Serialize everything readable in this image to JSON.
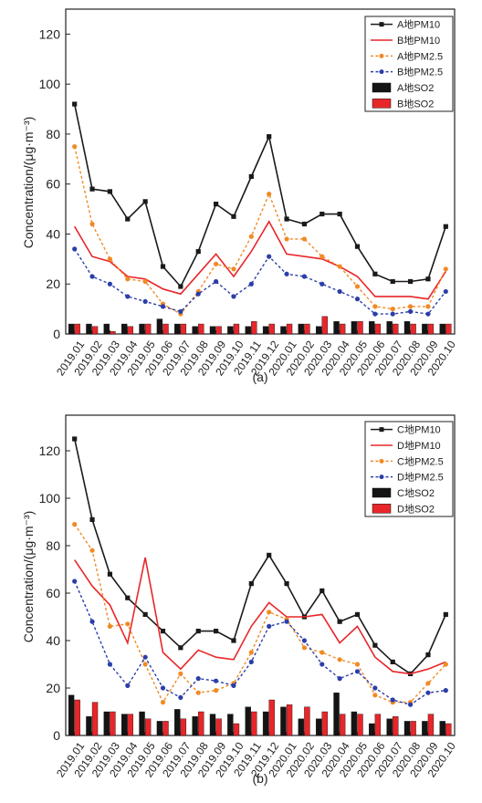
{
  "chart_data": [
    {
      "panel_label": "(a)",
      "type": "line",
      "ylabel": "Concentration/(μg·m⁻³)",
      "ylim": [
        0,
        130
      ],
      "yticks": [
        0,
        20,
        40,
        60,
        80,
        100,
        120
      ],
      "categories": [
        "2019.01",
        "2019.02",
        "2019.03",
        "2019.04",
        "2019.05",
        "2019.06",
        "2019.07",
        "2019.08",
        "2019.09",
        "2019.10",
        "2019.11",
        "2019.12",
        "2020.01",
        "2020.02",
        "2020.03",
        "2020.04",
        "2020.05",
        "2020.06",
        "2020.07",
        "2020.08",
        "2020.09",
        "2020.10"
      ],
      "legend_position": "top-right",
      "series": [
        {
          "name": "A地PM10",
          "kind": "line",
          "style": "solid",
          "marker": "square",
          "color": "#1a1a1a",
          "values": [
            92,
            58,
            57,
            46,
            53,
            27,
            19,
            33,
            52,
            47,
            63,
            79,
            46,
            44,
            48,
            48,
            35,
            24,
            21,
            21,
            22,
            43
          ]
        },
        {
          "name": "B地PM10",
          "kind": "line",
          "style": "solid",
          "marker": "none",
          "color": "#e8262a",
          "values": [
            43,
            31,
            29,
            23,
            22,
            18,
            16,
            24,
            32,
            23,
            33,
            45,
            32,
            31,
            30,
            27,
            23,
            15,
            15,
            15,
            14,
            25
          ]
        },
        {
          "name": "A地PM2.5",
          "kind": "line",
          "style": "dotted",
          "marker": "circle",
          "color": "#f08a24",
          "values": [
            75,
            44,
            30,
            22,
            21,
            12,
            8,
            17,
            28,
            26,
            39,
            56,
            38,
            38,
            31,
            27,
            19,
            11,
            10,
            11,
            11,
            26
          ]
        },
        {
          "name": "B地PM2.5",
          "kind": "line",
          "style": "dotted",
          "marker": "circle",
          "color": "#2b3ea8",
          "values": [
            34,
            23,
            20,
            15,
            13,
            11,
            9,
            16,
            21,
            15,
            20,
            31,
            24,
            23,
            20,
            17,
            14,
            8,
            8,
            9,
            8,
            17
          ]
        },
        {
          "name": "A地SO2",
          "kind": "bar",
          "color": "#141414",
          "values": [
            4,
            4,
            4,
            4,
            4,
            6,
            4,
            3,
            3,
            3,
            3,
            3,
            3,
            4,
            3,
            5,
            5,
            5,
            5,
            5,
            4,
            4
          ]
        },
        {
          "name": "B地SO2",
          "kind": "bar",
          "color": "#e8262a",
          "values": [
            4,
            3,
            1,
            3,
            4,
            4,
            4,
            4,
            3,
            4,
            5,
            4,
            4,
            4,
            7,
            4,
            5,
            4,
            4,
            4,
            4,
            4
          ]
        }
      ]
    },
    {
      "panel_label": "(b)",
      "type": "line",
      "ylabel": "Concentration/(μg·m⁻³)",
      "ylim": [
        0,
        135
      ],
      "yticks": [
        0,
        20,
        40,
        60,
        80,
        100,
        120
      ],
      "categories": [
        "2019.01",
        "2019.02",
        "2019.03",
        "2019.04",
        "2019.05",
        "2019.06",
        "2019.07",
        "2019.08",
        "2019.09",
        "2019.10",
        "2019.11",
        "2019.12",
        "2020.01",
        "2020.02",
        "2020.03",
        "2020.04",
        "2020.05",
        "2020.06",
        "2020.07",
        "2020.08",
        "2020.09",
        "2020.10"
      ],
      "legend_position": "top-right",
      "series": [
        {
          "name": "C地PM10",
          "kind": "line",
          "style": "solid",
          "marker": "square",
          "color": "#1a1a1a",
          "values": [
            125,
            91,
            68,
            58,
            51,
            44,
            37,
            44,
            44,
            40,
            64,
            76,
            64,
            50,
            61,
            48,
            51,
            38,
            31,
            26,
            34,
            51
          ]
        },
        {
          "name": "D地PM10",
          "kind": "line",
          "style": "solid",
          "marker": "none",
          "color": "#e8262a",
          "values": [
            74,
            63,
            55,
            39,
            75,
            35,
            28,
            36,
            33,
            32,
            46,
            56,
            50,
            50,
            51,
            39,
            46,
            33,
            27,
            26,
            28,
            31
          ]
        },
        {
          "name": "C地PM2.5",
          "kind": "line",
          "style": "dotted",
          "marker": "circle",
          "color": "#f08a24",
          "values": [
            89,
            78,
            46,
            47,
            30,
            14,
            26,
            18,
            19,
            22,
            35,
            52,
            49,
            37,
            35,
            32,
            30,
            17,
            14,
            14,
            22,
            30
          ]
        },
        {
          "name": "D地PM2.5",
          "kind": "line",
          "style": "dotted",
          "marker": "circle",
          "color": "#2b3ea8",
          "values": [
            65,
            48,
            30,
            21,
            33,
            20,
            16,
            24,
            23,
            21,
            31,
            46,
            48,
            40,
            30,
            24,
            27,
            20,
            15,
            13,
            18,
            19
          ]
        },
        {
          "name": "C地SO2",
          "kind": "bar",
          "color": "#141414",
          "values": [
            17,
            8,
            10,
            9,
            10,
            6,
            11,
            8,
            9,
            9,
            12,
            10,
            12,
            7,
            7,
            18,
            10,
            5,
            7,
            6,
            6,
            6
          ]
        },
        {
          "name": "D地SO2",
          "kind": "bar",
          "color": "#e8262a",
          "values": [
            15,
            14,
            10,
            9,
            7,
            6,
            7,
            10,
            7,
            5,
            10,
            15,
            13,
            12,
            10,
            9,
            9,
            9,
            8,
            6,
            9,
            5
          ]
        }
      ]
    }
  ]
}
